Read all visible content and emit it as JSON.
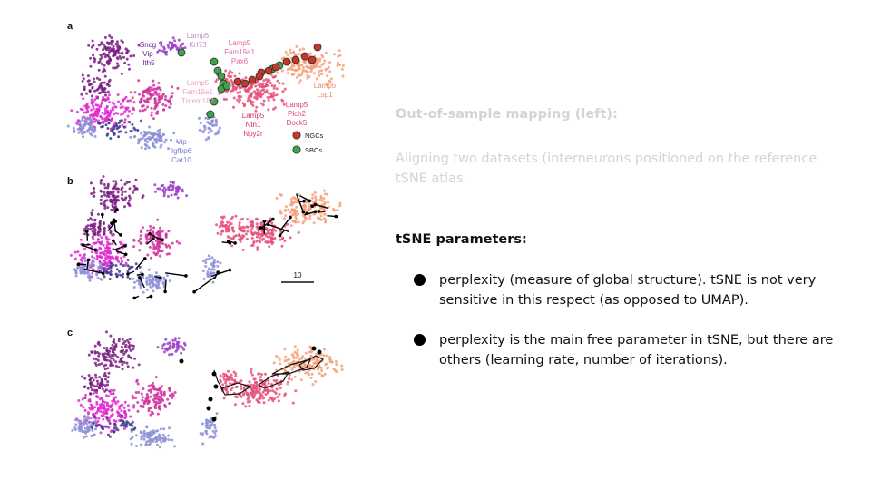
{
  "figure": {
    "panels": [
      "a",
      "b",
      "c"
    ],
    "labels": {
      "sncg": [
        "Sncg",
        "Vip",
        "Ilth5"
      ],
      "krt73": [
        "Lamp5",
        "Krt73"
      ],
      "fam19a1_pax6": [
        "Lamp5",
        "Fam19a1",
        "Pax6"
      ],
      "fam19a1_tmem": [
        "Lamp5",
        "Fam19a1",
        "Tmem182"
      ],
      "lsp1": [
        "Lamp5",
        "Lsp1"
      ],
      "ntn1": [
        "Lamp5",
        "Ntn1",
        "Npy2r"
      ],
      "plch2": [
        "Lamp5",
        "Plch2",
        "Dock5"
      ],
      "igfbp6": [
        "Vip",
        "Igfbp6",
        "Car10"
      ]
    },
    "legend": {
      "ngc": "NGCs",
      "sbc": "SBCs"
    },
    "legend_colors": {
      "ngc": "#c0392b",
      "sbc": "#3fa34d"
    },
    "scale_bar": "10",
    "cluster_colors": {
      "violet": "#7a1e82",
      "magenta": "#e02bd1",
      "pink": "#d0319c",
      "periwinkle": "#8c8fd6",
      "lamp_pink": "#e8507a",
      "salmon": "#f4a07a",
      "purple": "#9b3fc7",
      "navy": "#3b3a8c"
    }
  },
  "notes": {
    "faded_title": "Out-of-sample mapping (left):",
    "faded_text": "Aligning two datasets (interneurons positioned on the reference tSNE atlas.",
    "params_title": "tSNE parameters:",
    "bullets": [
      "perplexity (measure of global structure). tSNE is not very sensitive in this respect (as opposed to UMAP).",
      "perplexity is the main free parameter in tSNE, but there are others (learning rate, number of iterations)."
    ]
  }
}
